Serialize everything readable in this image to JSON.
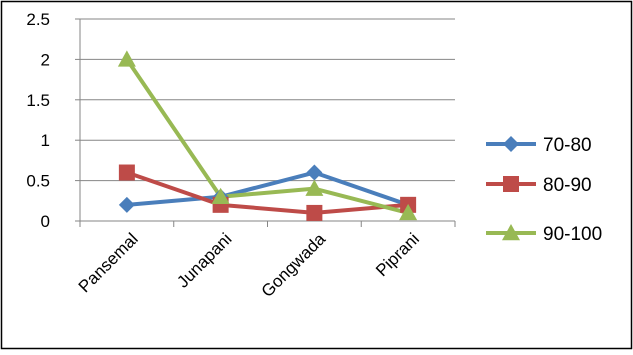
{
  "chart_data": {
    "type": "line",
    "categories": [
      "Pansemal",
      "Junapani",
      "Gongwada",
      "Piprani"
    ],
    "ylim": [
      0,
      2.5
    ],
    "yticks": [
      0,
      0.5,
      1,
      1.5,
      2,
      2.5
    ],
    "ytick_labels": [
      "0",
      "0.5",
      "1",
      "1.5",
      "2",
      "2.5"
    ],
    "grid": true,
    "legend_position": "right",
    "series": [
      {
        "name": "70-80",
        "values": [
          0.2,
          0.3,
          0.6,
          0.2
        ],
        "color": "#4a7ebb",
        "marker": "diamond"
      },
      {
        "name": "80-90",
        "values": [
          0.6,
          0.2,
          0.1,
          0.2
        ],
        "color": "#be4b48",
        "marker": "square"
      },
      {
        "name": "90-100",
        "values": [
          2.0,
          0.3,
          0.4,
          0.1
        ],
        "color": "#98b954",
        "marker": "triangle"
      }
    ]
  }
}
